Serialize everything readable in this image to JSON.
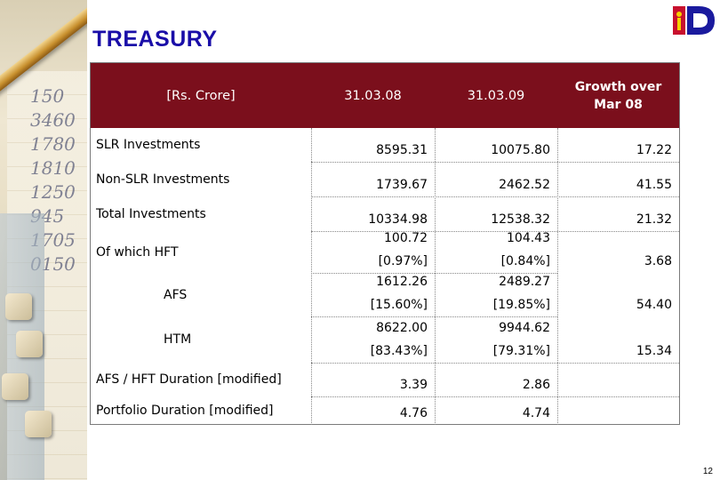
{
  "slide": {
    "title": "TREASURY",
    "page_number": "12"
  },
  "table": {
    "headers": {
      "unit": "[Rs. Crore]",
      "col1": "31.03.08",
      "col2": "31.03.09",
      "growth_line1": "Growth over",
      "growth_line2": "Mar 08"
    },
    "rows": [
      {
        "label": "SLR Investments",
        "v1": "8595.31",
        "v2": "10075.80",
        "growth": "17.22"
      },
      {
        "label": "Non-SLR Investments",
        "v1": "1739.67",
        "v2": "2462.52",
        "growth": "41.55"
      },
      {
        "label": "Total Investments",
        "v1": "10334.98",
        "v2": "12538.32",
        "growth": "21.32"
      },
      {
        "label": "Of which  HFT",
        "v1": "100.72",
        "v1b": "[0.97%]",
        "v2": "104.43",
        "v2b": "[0.84%]",
        "growth": "3.68"
      },
      {
        "label": "AFS",
        "v1": "1612.26",
        "v1b": "[15.60%]",
        "v2": "2489.27",
        "v2b": "[19.85%]",
        "growth": "54.40"
      },
      {
        "label": "HTM",
        "v1": "8622.00",
        "v1b": "[83.43%]",
        "v2": "9944.62",
        "v2b": "[79.31%]",
        "growth": "15.34"
      },
      {
        "label": "AFS / HFT Duration [modified]",
        "v1": "3.39",
        "v2": "2.86",
        "growth": ""
      },
      {
        "label": "Portfolio Duration [modified]",
        "v1": "4.76",
        "v2": "4.74",
        "growth": ""
      }
    ]
  },
  "decor": {
    "ledger_digits": [
      "150",
      "3460",
      "1780",
      "1810",
      "1250",
      "945",
      "1705",
      "0150"
    ]
  },
  "colors": {
    "title": "#1a0ea8",
    "header_band": "#7b0f1c",
    "logo_red": "#c8102e"
  }
}
